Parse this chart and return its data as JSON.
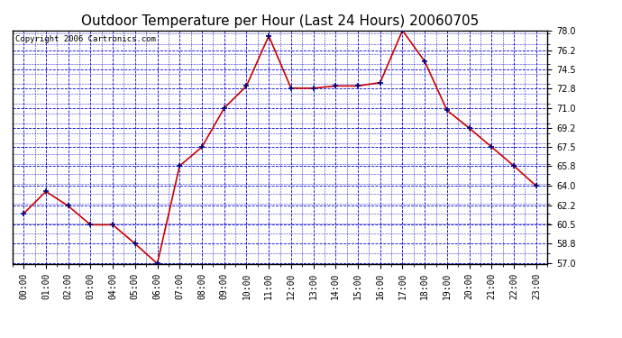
{
  "title": "Outdoor Temperature per Hour (Last 24 Hours) 20060705",
  "copyright_text": "Copyright 2006 Cartronics.com",
  "hours": [
    "00:00",
    "01:00",
    "02:00",
    "03:00",
    "04:00",
    "05:00",
    "06:00",
    "07:00",
    "08:00",
    "09:00",
    "10:00",
    "11:00",
    "12:00",
    "13:00",
    "14:00",
    "15:00",
    "16:00",
    "17:00",
    "18:00",
    "19:00",
    "20:00",
    "21:00",
    "22:00",
    "23:00"
  ],
  "temperatures": [
    61.5,
    63.5,
    62.2,
    60.5,
    60.5,
    58.8,
    57.0,
    65.8,
    67.5,
    71.0,
    73.0,
    77.5,
    72.8,
    72.8,
    73.0,
    73.0,
    73.3,
    78.0,
    75.2,
    70.8,
    69.2,
    67.5,
    65.8,
    64.0
  ],
  "ylim_min": 57.0,
  "ylim_max": 78.0,
  "yticks": [
    57.0,
    58.8,
    60.5,
    62.2,
    64.0,
    65.8,
    67.5,
    69.2,
    71.0,
    72.8,
    74.5,
    76.2,
    78.0
  ],
  "line_color": "#cc0000",
  "marker_color": "#000080",
  "grid_color": "#0000cc",
  "background_color": "#ffffff",
  "plot_bg_color": "#ffffff",
  "title_fontsize": 11,
  "copyright_fontsize": 6.5,
  "tick_fontsize": 7,
  "border_color": "#000000"
}
